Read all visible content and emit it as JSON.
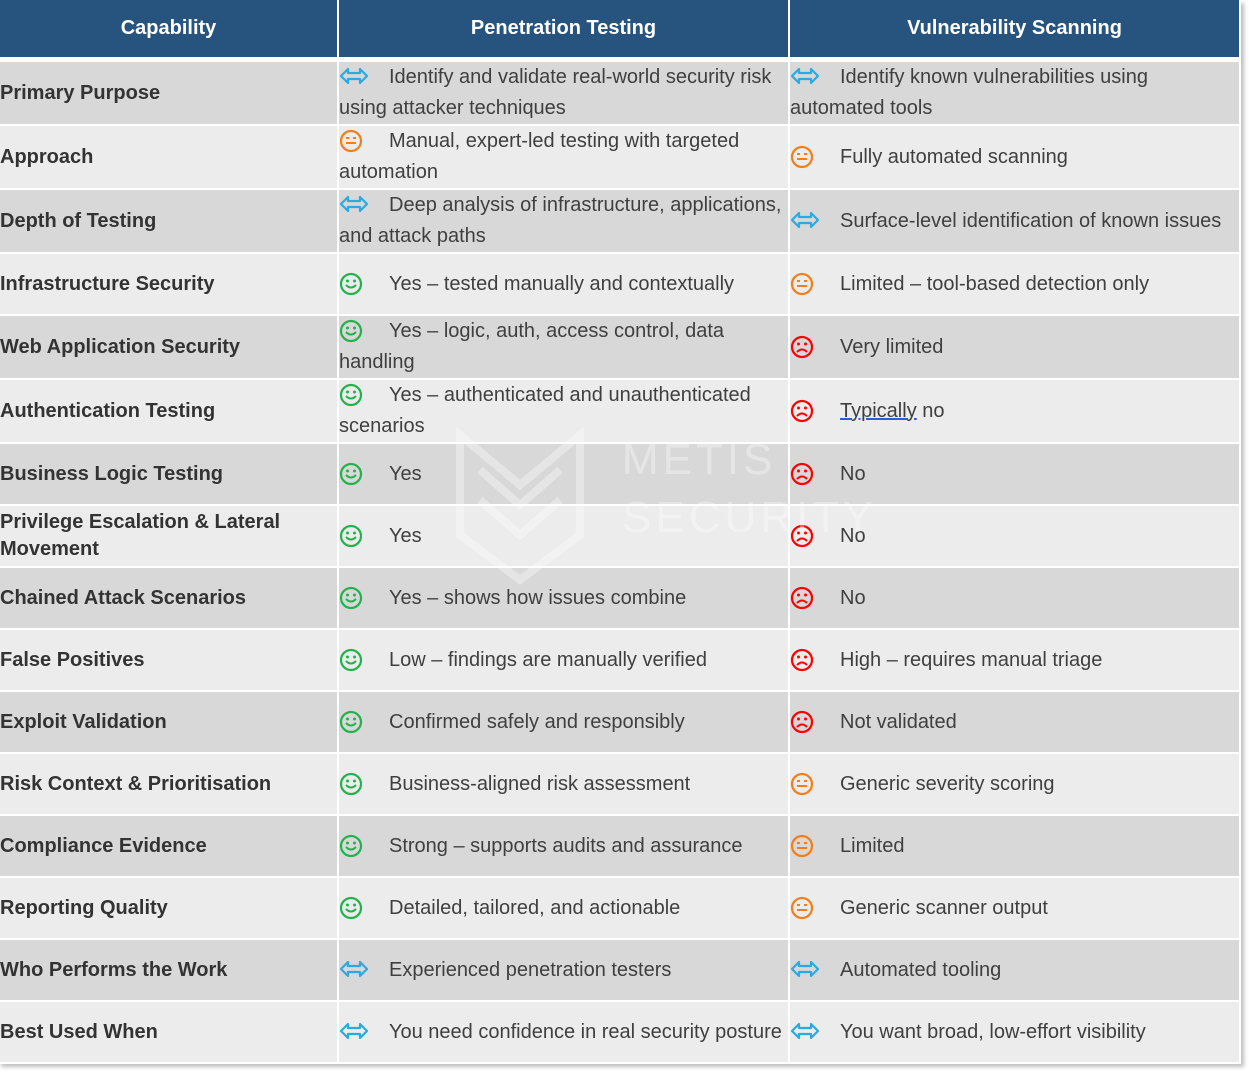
{
  "headers": [
    "Capability",
    "Penetration Testing",
    "Vulnerability Scanning"
  ],
  "watermark": {
    "line1": "METIS",
    "line2": "SECURITY"
  },
  "colors": {
    "header": "#27547f",
    "good": "#22b24c",
    "neutral": "#f07f1a",
    "bad": "#ff0000",
    "info": "#29abe2"
  },
  "rows": [
    {
      "capability": "Primary Purpose",
      "pt": {
        "icon": "arrows-icon",
        "text": "Identify and validate real-world security risk using attacker techniques"
      },
      "vs": {
        "icon": "arrows-icon",
        "text": "Identify known vulnerabilities using automated tools"
      }
    },
    {
      "capability": "Approach",
      "pt": {
        "icon": "neutral-face-icon",
        "text": "Manual, expert-led testing with targeted automation"
      },
      "vs": {
        "icon": "neutral-face-icon",
        "text": "Fully automated scanning"
      }
    },
    {
      "capability": "Depth of Testing",
      "pt": {
        "icon": "arrows-icon",
        "text": "Deep analysis of infrastructure, applications, and attack paths"
      },
      "vs": {
        "icon": "arrows-icon",
        "text": "Surface-level identification of known issues"
      }
    },
    {
      "capability": "Infrastructure Security",
      "pt": {
        "icon": "smiley-face-icon",
        "text": "Yes – tested manually and contextually"
      },
      "vs": {
        "icon": "neutral-face-icon",
        "text": "Limited – tool-based detection only"
      }
    },
    {
      "capability": "Web Application Security",
      "pt": {
        "icon": "smiley-face-icon",
        "text": "Yes – logic, auth, access control, data handling"
      },
      "vs": {
        "icon": "frown-face-icon",
        "text": "Very limited"
      }
    },
    {
      "capability": "Authentication Testing",
      "pt": {
        "icon": "smiley-face-icon",
        "text": "Yes – authenticated and unauthenticated scenarios"
      },
      "vs": {
        "icon": "frown-face-icon",
        "text": "Typically no"
      }
    },
    {
      "capability": "Business Logic Testing",
      "pt": {
        "icon": "smiley-face-icon",
        "text": "Yes"
      },
      "vs": {
        "icon": "frown-face-icon",
        "text": "No"
      }
    },
    {
      "capability": "Privilege Escalation & Lateral Movement",
      "pt": {
        "icon": "smiley-face-icon",
        "text": "Yes"
      },
      "vs": {
        "icon": "frown-face-icon",
        "text": "No"
      }
    },
    {
      "capability": "Chained Attack Scenarios",
      "pt": {
        "icon": "smiley-face-icon",
        "text": "Yes – shows how issues combine"
      },
      "vs": {
        "icon": "frown-face-icon",
        "text": "No"
      }
    },
    {
      "capability": "False Positives",
      "pt": {
        "icon": "smiley-face-icon",
        "text": "Low – findings are manually verified"
      },
      "vs": {
        "icon": "frown-face-icon",
        "text": "High – requires manual triage"
      }
    },
    {
      "capability": "Exploit Validation",
      "pt": {
        "icon": "smiley-face-icon",
        "text": "Confirmed safely and responsibly"
      },
      "vs": {
        "icon": "frown-face-icon",
        "text": "Not validated"
      }
    },
    {
      "capability": "Risk Context & Prioritisation",
      "pt": {
        "icon": "smiley-face-icon",
        "text": "Business-aligned risk assessment"
      },
      "vs": {
        "icon": "neutral-face-icon",
        "text": "Generic severity scoring"
      }
    },
    {
      "capability": "Compliance Evidence",
      "pt": {
        "icon": "smiley-face-icon",
        "text": "Strong – supports audits and assurance"
      },
      "vs": {
        "icon": "neutral-face-icon",
        "text": "Limited"
      }
    },
    {
      "capability": "Reporting Quality",
      "pt": {
        "icon": "smiley-face-icon",
        "text": "Detailed, tailored, and actionable"
      },
      "vs": {
        "icon": "neutral-face-icon",
        "text": "Generic scanner output"
      }
    },
    {
      "capability": "Who Performs the Work",
      "pt": {
        "icon": "arrows-icon",
        "text": "Experienced penetration testers"
      },
      "vs": {
        "icon": "arrows-icon",
        "text": "Automated tooling"
      }
    },
    {
      "capability": "Best Used When",
      "pt": {
        "icon": "arrows-icon",
        "text": "You need confidence in real security posture"
      },
      "vs": {
        "icon": "arrows-icon",
        "text": "You want broad, low-effort visibility"
      }
    }
  ]
}
